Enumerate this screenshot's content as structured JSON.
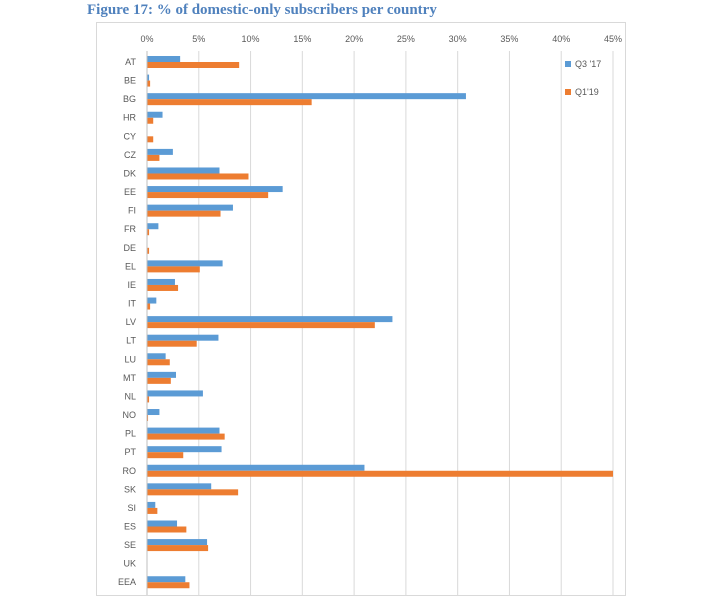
{
  "figure_title": "Figure 17: % of domestic-only subscribers per country",
  "chart_data": {
    "type": "bar",
    "orientation": "horizontal",
    "title": "Figure 17: % of domestic-only subscribers per country",
    "xlabel": "",
    "ylabel": "",
    "xlim": [
      0,
      45
    ],
    "xticks": [
      "0%",
      "5%",
      "10%",
      "15%",
      "20%",
      "25%",
      "30%",
      "35%",
      "40%",
      "45%"
    ],
    "grid": true,
    "legend_position": "top-right",
    "categories": [
      "AT",
      "BE",
      "BG",
      "HR",
      "CY",
      "CZ",
      "DK",
      "EE",
      "FI",
      "FR",
      "DE",
      "EL",
      "IE",
      "IT",
      "LV",
      "LT",
      "LU",
      "MT",
      "NL",
      "NO",
      "PL",
      "PT",
      "RO",
      "SK",
      "SI",
      "ES",
      "SE",
      "UK",
      "EEA"
    ],
    "series": [
      {
        "name": "Q3 '17",
        "color": "#5b9bd5",
        "values": [
          3.2,
          0.2,
          30.8,
          1.5,
          0,
          2.5,
          7.0,
          13.1,
          8.3,
          1.1,
          0,
          7.3,
          2.7,
          0.9,
          23.7,
          6.9,
          1.8,
          2.8,
          5.4,
          1.2,
          7.0,
          7.2,
          21.0,
          6.2,
          0.8,
          2.9,
          5.8,
          0,
          3.7
        ]
      },
      {
        "name": "Q1'19",
        "color": "#ed7d31",
        "values": [
          8.9,
          0.3,
          15.9,
          0.6,
          0.6,
          1.2,
          9.8,
          11.7,
          7.1,
          0.2,
          0.2,
          5.1,
          3.0,
          0.3,
          22.0,
          4.8,
          2.2,
          2.3,
          0.2,
          0.1,
          7.5,
          3.5,
          45.0,
          8.8,
          1.0,
          3.8,
          5.9,
          0,
          4.1
        ]
      }
    ]
  }
}
